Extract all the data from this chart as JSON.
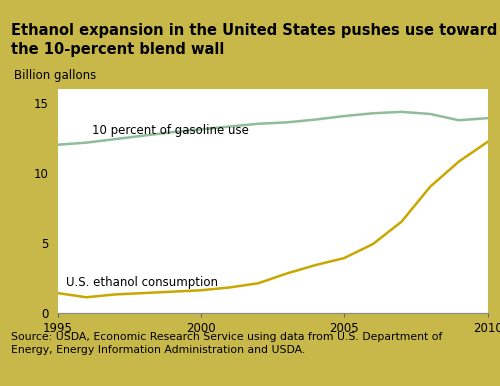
{
  "title": "Ethanol expansion in the United States pushes use toward\nthe 10-percent blend wall",
  "ylabel": "Billion gallons",
  "source": "Source: USDA, Economic Research Service using data from U.S. Department of\nEnergy, Energy Information Administration and USDA.",
  "background_outer": "#c8b84a",
  "background_title": "#9aaa88",
  "background_plot": "#ffffff",
  "background_source": "#9aaa88",
  "line1_color": "#8fbc9a",
  "line2_color": "#c8a800",
  "line1_label": "10 percent of gasoline use",
  "line2_label": "U.S. ethanol consumption",
  "years": [
    1995,
    1996,
    1997,
    1998,
    1999,
    2000,
    2001,
    2002,
    2003,
    2004,
    2005,
    2006,
    2007,
    2008,
    2009,
    2010
  ],
  "gasoline_10pct": [
    12.0,
    12.15,
    12.4,
    12.65,
    12.9,
    13.1,
    13.3,
    13.5,
    13.6,
    13.8,
    14.05,
    14.25,
    14.35,
    14.2,
    13.75,
    13.9
  ],
  "ethanol": [
    1.4,
    1.1,
    1.3,
    1.4,
    1.5,
    1.6,
    1.8,
    2.1,
    2.8,
    3.4,
    3.9,
    4.9,
    6.5,
    9.0,
    10.8,
    12.2
  ],
  "ylim": [
    0,
    16
  ],
  "xlim": [
    1995,
    2010
  ],
  "yticks": [
    0,
    5,
    10,
    15
  ],
  "xticks": [
    1995,
    2000,
    2005,
    2010
  ],
  "title_fontsize": 10.5,
  "label_fontsize": 8.5,
  "tick_fontsize": 8.5,
  "source_fontsize": 7.8
}
